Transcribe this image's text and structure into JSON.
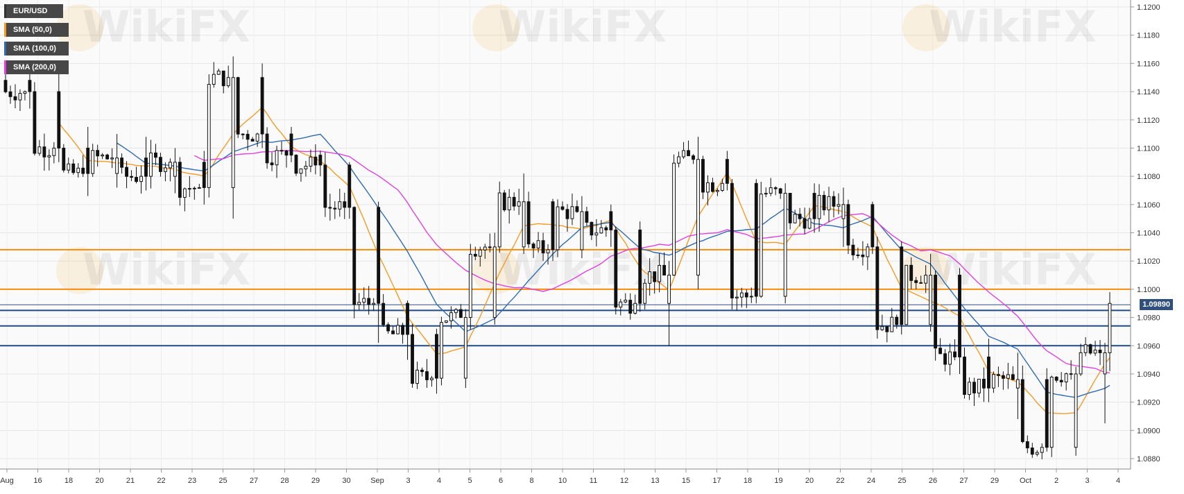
{
  "chart_data": {
    "type": "candlestick",
    "title": "EUR/USD",
    "legend": [
      {
        "name": "EUR/USD",
        "color": "#222222"
      },
      {
        "name": "SMA (50,0)",
        "color": "#f59a23"
      },
      {
        "name": "SMA (100,0)",
        "color": "#2f6bb0"
      },
      {
        "name": "SMA (200,0)",
        "color": "#e040e0"
      }
    ],
    "legend_position": "top-left",
    "ylim": [
      1.087,
      1.1205
    ],
    "y_ticks": [
      "1.1200",
      "1.1180",
      "1.1160",
      "1.1140",
      "1.1120",
      "1.1100",
      "1.1080",
      "1.1060",
      "1.1040",
      "1.1020",
      "1.1000",
      "1.0980",
      "1.0960",
      "1.0940",
      "1.0920",
      "1.0900",
      "1.0880"
    ],
    "x_tick_labels": [
      "Aug",
      "16",
      "18",
      "20",
      "21",
      "22",
      "23",
      "25",
      "27",
      "28",
      "29",
      "30",
      "Sep",
      "3",
      "4",
      "5",
      "6",
      "8",
      "10",
      "11",
      "12",
      "13",
      "15",
      "17",
      "18",
      "19",
      "20",
      "22",
      "24",
      "25",
      "26",
      "27",
      "29",
      "Oct",
      "2",
      "3",
      "4"
    ],
    "current_price": "1.09890",
    "horizontal_levels": [
      {
        "value": 1.1028,
        "color": "#f58c0c"
      },
      {
        "value": 1.1,
        "color": "#f58c0c"
      },
      {
        "value": 1.0985,
        "color": "#1f4a8a"
      },
      {
        "value": 1.0974,
        "color": "#1f4a8a"
      },
      {
        "value": 1.096,
        "color": "#1f4a8a"
      }
    ],
    "ohlc_anchors": [
      [
        1.1148,
        1.1158,
        1.1128,
        1.114
      ],
      [
        1.114,
        1.116,
        1.109,
        1.11
      ],
      [
        1.11,
        1.1115,
        1.1066,
        1.1082
      ],
      [
        1.1082,
        1.111,
        1.1072,
        1.1093
      ],
      [
        1.1093,
        1.1108,
        1.107,
        1.108
      ],
      [
        1.108,
        1.11,
        1.1068,
        1.109
      ],
      [
        1.109,
        1.1098,
        1.106,
        1.1072
      ],
      [
        1.1072,
        1.1165,
        1.105,
        1.115
      ],
      [
        1.115,
        1.116,
        1.11,
        1.111
      ],
      [
        1.111,
        1.1115,
        1.109,
        1.1095
      ],
      [
        1.1095,
        1.1098,
        1.108,
        1.1088
      ],
      [
        1.1088,
        1.109,
        1.105,
        1.1058
      ],
      [
        1.1058,
        1.1062,
        1.0962,
        1.099
      ],
      [
        1.099,
        1.0992,
        1.095,
        1.0968
      ],
      [
        1.0968,
        1.0972,
        1.0926,
        1.0937
      ],
      [
        1.0937,
        1.0986,
        1.093,
        1.098
      ],
      [
        1.098,
        1.104,
        1.0975,
        1.103
      ],
      [
        1.103,
        1.1082,
        1.1025,
        1.1062
      ],
      [
        1.1062,
        1.1064,
        1.102,
        1.1028
      ],
      [
        1.1028,
        1.1066,
        1.1022,
        1.1055
      ],
      [
        1.1055,
        1.106,
        1.103,
        1.1042
      ],
      [
        1.1042,
        1.1048,
        1.0984,
        1.099
      ],
      [
        1.099,
        1.102,
        1.096,
        1.101
      ],
      [
        1.101,
        1.1108,
        1.1,
        1.1092
      ],
      [
        1.1092,
        1.1098,
        1.107,
        1.1075
      ],
      [
        1.1075,
        1.1078,
        1.099,
        1.0995
      ],
      [
        1.0995,
        1.1075,
        1.099,
        1.1068
      ],
      [
        1.1068,
        1.1075,
        1.104,
        1.105
      ],
      [
        1.105,
        1.1072,
        1.103,
        1.106
      ],
      [
        1.106,
        1.1062,
        1.1025,
        1.103
      ],
      [
        1.103,
        1.1034,
        1.0968,
        1.0975
      ],
      [
        1.0975,
        1.1025,
        1.097,
        1.101
      ],
      [
        1.101,
        1.1015,
        1.094,
        1.0952
      ],
      [
        1.0952,
        1.0965,
        1.092,
        1.093
      ],
      [
        1.093,
        1.0955,
        1.0908,
        1.0936
      ],
      [
        1.0936,
        1.0944,
        1.0885,
        1.0888
      ],
      [
        1.0888,
        1.0945,
        1.0882,
        1.094
      ],
      [
        1.094,
        1.0962,
        1.0905,
        1.0955
      ],
      [
        1.0955,
        1.0998,
        1.0942,
        1.099
      ]
    ]
  },
  "watermark": "WikiFX"
}
